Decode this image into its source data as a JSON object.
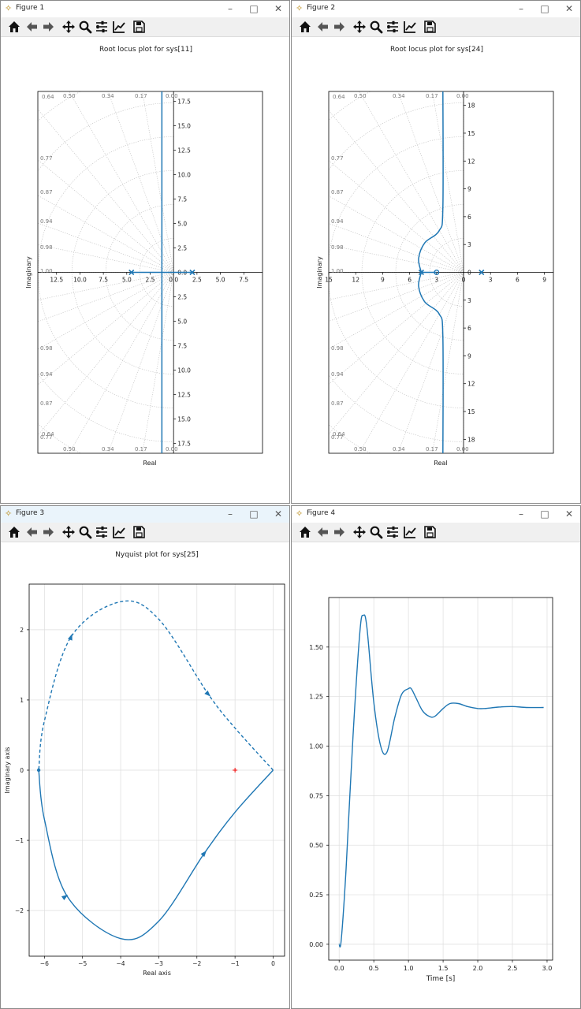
{
  "windows": [
    {
      "title": "Figure 1",
      "active": false
    },
    {
      "title": "Figure 2",
      "active": false
    },
    {
      "title": "Figure 3",
      "active": true
    },
    {
      "title": "Figure 4",
      "active": false
    }
  ],
  "toolbar": {
    "icons": [
      "home-icon",
      "back-icon",
      "forward-icon",
      "pan-icon",
      "zoom-icon",
      "configure-subplots-icon",
      "edit-axis-icon",
      "save-icon"
    ]
  },
  "chart_data": [
    {
      "type": "line",
      "title": "Root locus plot for sys[11]",
      "xlabel": "Real",
      "ylabel": "Imaginary",
      "xlim": [
        -14.5,
        9.5
      ],
      "ylim": [
        -18.5,
        18.5
      ],
      "x_tick_labels": [
        "12.5",
        "10.0",
        "7.5",
        "5.0",
        "2.5",
        "0.0",
        "2.5",
        "5.0",
        "7.5"
      ],
      "y_tick_labels": [
        "17.5",
        "15.0",
        "12.5",
        "10.0",
        "7.5",
        "5.0",
        "2.5",
        "0.0",
        "2.5",
        "5.0",
        "7.5",
        "10.0",
        "12.5",
        "15.0",
        "17.5"
      ],
      "damping_labels": [
        "0.64",
        "0.50",
        "0.34",
        "0.17",
        "0.00",
        "0.77",
        "0.87",
        "0.94",
        "0.98",
        "1.00"
      ],
      "poles": [
        [
          -4.5,
          0
        ],
        [
          2.0,
          0
        ]
      ],
      "zeros": [],
      "branches": "real-axis segment from -4.5 to 2.0, breakaway at -1.25, vertical asymptote at real -1.25"
    },
    {
      "type": "line",
      "title": "Root locus plot for sys[24]",
      "xlabel": "Real",
      "ylabel": "Imaginary",
      "xlim": [
        -15,
        10
      ],
      "ylim": [
        -19.5,
        19.5
      ],
      "x_tick_labels": [
        "15",
        "12",
        "9",
        "6",
        "3",
        "0",
        "3",
        "6",
        "9"
      ],
      "y_tick_labels": [
        "18",
        "15",
        "12",
        "9",
        "6",
        "3",
        "0",
        "3",
        "6",
        "9",
        "12",
        "15",
        "18"
      ],
      "damping_labels": [
        "0.64",
        "0.50",
        "0.34",
        "0.17",
        "0.00",
        "0.77",
        "0.87",
        "0.94",
        "0.98",
        "1.00"
      ],
      "poles": [
        [
          -4.7,
          0
        ],
        [
          2.0,
          0
        ]
      ],
      "zeros": [
        [
          -3.0,
          0
        ]
      ],
      "branches": "branches leave -4.7 vertically, bend near real -5 and approach vertical asymptote at real -2.3"
    },
    {
      "type": "line",
      "title": "Nyquist plot for sys[25]",
      "xlabel": "Real axis",
      "ylabel": "Imaginary axis",
      "xlim": [
        -6.4,
        0.3
      ],
      "ylim": [
        -2.65,
        2.65
      ],
      "x_ticks": [
        -6,
        -5,
        -4,
        -3,
        -2,
        -1,
        0
      ],
      "x_tick_labels": [
        "−6",
        "−5",
        "−4",
        "−3",
        "−2",
        "−1",
        "0"
      ],
      "y_ticks": [
        2,
        1,
        0,
        -1,
        -2
      ],
      "y_tick_labels": [
        "2",
        "1",
        "0",
        "−1",
        "−2"
      ],
      "critical_point": [
        -1,
        0
      ],
      "series": [
        {
          "style": "solid",
          "points": [
            [
              0,
              0
            ],
            [
              -1,
              -0.6
            ],
            [
              -1.8,
              -1.18
            ],
            [
              -3,
              -2.15
            ],
            [
              -4,
              -2.4
            ],
            [
              -5.4,
              -1.8
            ],
            [
              -6,
              -0.7
            ],
            [
              -6.15,
              0
            ]
          ]
        },
        {
          "style": "dashed",
          "points": [
            [
              0,
              0
            ],
            [
              -1,
              0.6
            ],
            [
              -1.7,
              1.08
            ],
            [
              -3,
              2.15
            ],
            [
              -4,
              2.4
            ],
            [
              -5.3,
              1.9
            ],
            [
              -6,
              0.7
            ],
            [
              -6.15,
              0
            ]
          ]
        }
      ]
    },
    {
      "type": "line",
      "title": "",
      "xlabel": "Time [s]",
      "ylabel": "",
      "xlim": [
        -0.15,
        3.08
      ],
      "ylim": [
        -0.08,
        1.75
      ],
      "x_ticks": [
        0.0,
        0.5,
        1.0,
        1.5,
        2.0,
        2.5,
        3.0
      ],
      "x_tick_labels": [
        "0.0",
        "0.5",
        "1.0",
        "1.5",
        "2.0",
        "2.5",
        "3.0"
      ],
      "y_ticks": [
        0.0,
        0.25,
        0.5,
        0.75,
        1.0,
        1.25,
        1.5
      ],
      "y_tick_labels": [
        "0.00",
        "0.25",
        "0.50",
        "0.75",
        "1.00",
        "1.25",
        "1.50"
      ],
      "series": [
        {
          "x": [
            0.0,
            0.03,
            0.1,
            0.2,
            0.3,
            0.35,
            0.4,
            0.5,
            0.6,
            0.69,
            0.8,
            0.9,
            1.0,
            1.04,
            1.1,
            1.2,
            1.3,
            1.38,
            1.5,
            1.6,
            1.72,
            1.85,
            2.0,
            2.1,
            2.3,
            2.5,
            2.7,
            2.95
          ],
          "y": [
            0.0,
            0.02,
            0.38,
            1.05,
            1.58,
            1.66,
            1.6,
            1.22,
            1.0,
            0.97,
            1.14,
            1.26,
            1.29,
            1.29,
            1.25,
            1.18,
            1.15,
            1.15,
            1.19,
            1.215,
            1.215,
            1.2,
            1.19,
            1.19,
            1.197,
            1.2,
            1.195,
            1.195
          ]
        }
      ]
    }
  ]
}
